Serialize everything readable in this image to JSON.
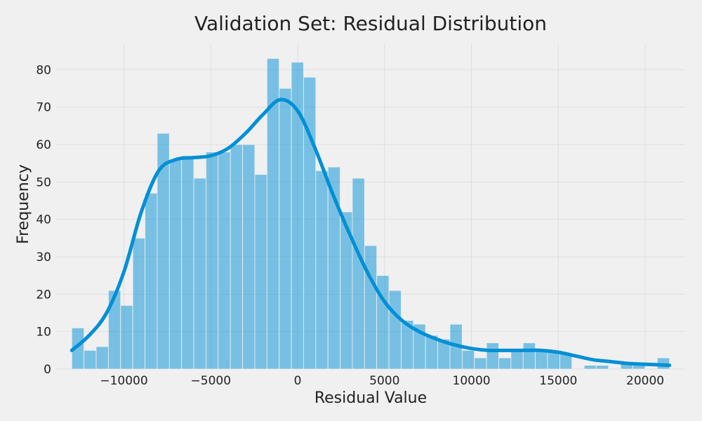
{
  "chart_data": {
    "type": "histogram",
    "title": "Validation Set: Residual Distribution",
    "xlabel": "Residual Value",
    "ylabel": "Frequency",
    "xlim": [
      -13900,
      22300
    ],
    "ylim": [
      0,
      87
    ],
    "x_ticks": [
      {
        "value": -10000,
        "label": "−10000"
      },
      {
        "value": -5000,
        "label": "−5000"
      },
      {
        "value": 0,
        "label": "0"
      },
      {
        "value": 5000,
        "label": "5000"
      },
      {
        "value": 10000,
        "label": "10000"
      },
      {
        "value": 15000,
        "label": "15000"
      },
      {
        "value": 20000,
        "label": "20000"
      }
    ],
    "y_ticks": [
      0,
      10,
      20,
      30,
      40,
      50,
      60,
      70,
      80
    ],
    "grid": true,
    "bin_start": -13000,
    "bin_end": 21400,
    "bin_values": [
      11,
      5,
      6,
      21,
      17,
      35,
      47,
      63,
      56,
      57,
      51,
      58,
      58,
      60,
      60,
      52,
      83,
      75,
      82,
      78,
      53,
      54,
      42,
      51,
      33,
      25,
      21,
      13,
      12,
      9,
      8,
      12,
      5,
      3,
      7,
      3,
      5,
      7,
      5,
      5,
      4,
      0,
      1,
      1,
      0,
      2,
      1,
      0,
      3
    ],
    "kde": {
      "x": [
        -13000,
        -12000,
        -11000,
        -10000,
        -9000,
        -8000,
        -7000,
        -6000,
        -5000,
        -4000,
        -3000,
        -2000,
        -1000,
        0,
        1000,
        2000,
        3000,
        4000,
        5000,
        6000,
        7000,
        8000,
        9000,
        10000,
        11000,
        12000,
        13000,
        14000,
        15000,
        16000,
        17000,
        18000,
        19000,
        20000,
        21400
      ],
      "y": [
        5,
        9,
        15,
        26,
        42,
        53,
        56,
        56.5,
        57,
        59,
        63,
        68,
        72,
        69,
        59,
        47,
        36,
        26,
        18,
        13,
        10,
        8,
        6.5,
        5.5,
        5,
        5,
        5,
        5,
        4.5,
        3.5,
        2.5,
        2,
        1.5,
        1.3,
        1
      ]
    },
    "colors": {
      "background": "#f0f0f0",
      "bar_fill": "rgba(0,143,213,0.5)",
      "kde_line": "#008fd5"
    }
  }
}
